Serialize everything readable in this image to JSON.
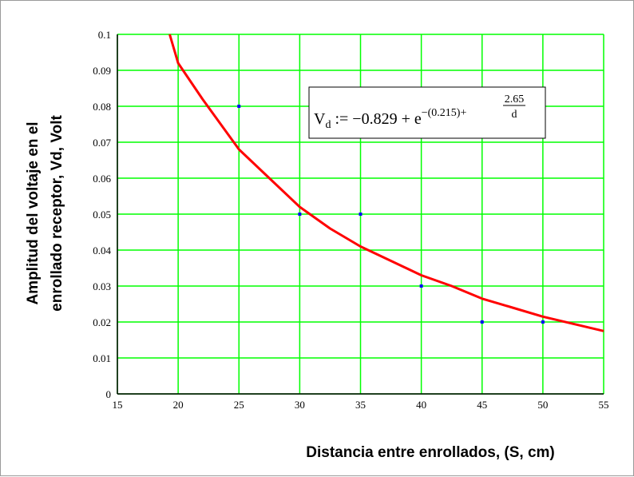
{
  "chart_data": {
    "type": "scatter",
    "xlabel": "Distancia entre enrollados, (S, cm)",
    "ylabel_lines": [
      "Amplitud del voltaje en el",
      "enrollado receptor, Vd, Volt"
    ],
    "xlim": [
      15,
      55
    ],
    "ylim": [
      0,
      0.1
    ],
    "x_ticks": [
      "15",
      "20",
      "25",
      "30",
      "35",
      "40",
      "45",
      "50",
      "55"
    ],
    "y_ticks": [
      "0",
      "0.01",
      "0.02",
      "0.03",
      "0.04",
      "0.05",
      "0.06",
      "0.07",
      "0.08",
      "0.09",
      "0.1"
    ],
    "grid": true,
    "points": [
      {
        "x": 25,
        "y": 0.08
      },
      {
        "x": 30,
        "y": 0.05
      },
      {
        "x": 35,
        "y": 0.05
      },
      {
        "x": 40,
        "y": 0.03
      },
      {
        "x": 45,
        "y": 0.02
      },
      {
        "x": 50,
        "y": 0.02
      }
    ],
    "fit_curve": {
      "x": [
        19.3,
        20,
        22,
        25,
        27.5,
        30,
        32.5,
        35,
        37.5,
        40,
        42.5,
        45,
        47.5,
        50,
        52.5,
        55
      ],
      "y": [
        0.1,
        0.092,
        0.082,
        0.068,
        0.06,
        0.052,
        0.046,
        0.041,
        0.037,
        0.033,
        0.03,
        0.0265,
        0.024,
        0.0215,
        0.0195,
        0.0175
      ]
    },
    "equation": {
      "lhs": "V",
      "lhs_sub": "d",
      "assign": " := −0.829 + e",
      "exponent": "−(0.215)+",
      "frac_num": "2.65",
      "frac_den": "d"
    },
    "colors": {
      "grid": "#00ff00",
      "curve": "#ff0000",
      "points": "#0000ff",
      "axes": "#000000"
    }
  }
}
